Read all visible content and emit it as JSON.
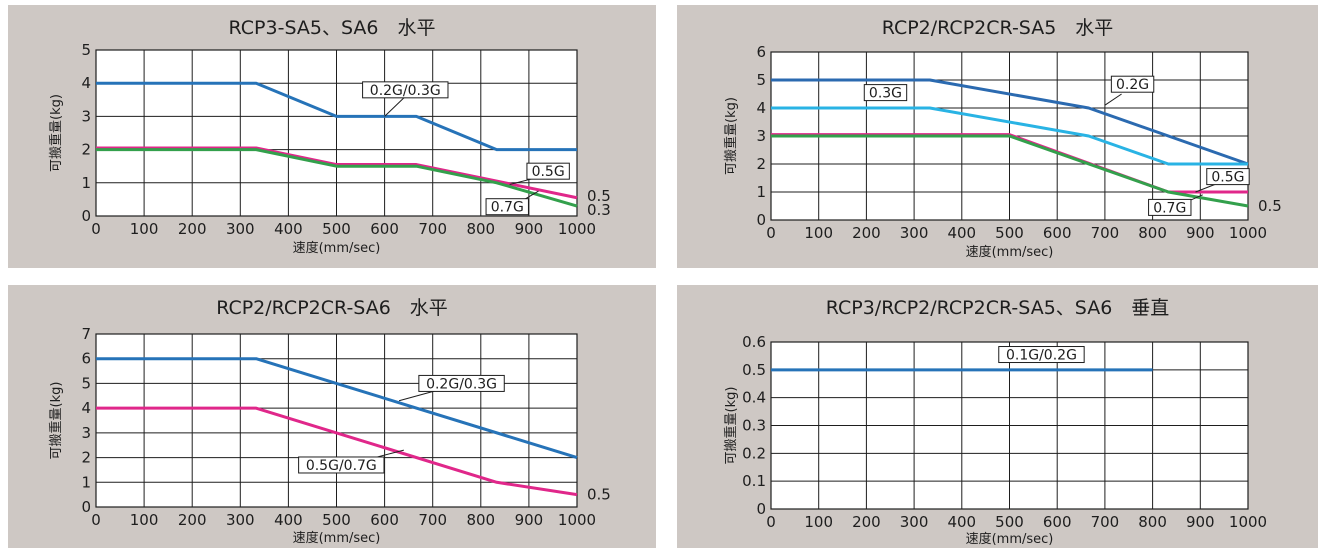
{
  "colors": {
    "panel_bg": "#cec8c4",
    "blue": "#2673b8",
    "dark_blue": "#2b6ab0",
    "cyan": "#29b3e4",
    "magenta": "#e0278a",
    "green": "#33a04c",
    "grid": "#1e1e1e"
  },
  "chart_data": [
    {
      "type": "line",
      "title": "RCP3-SA5、SA6　水平",
      "xlabel": "速度(mm/sec)",
      "ylabel": "可搬重量(kg)",
      "xlim": [
        0,
        1000
      ],
      "ylim": [
        0,
        5
      ],
      "x_ticks": [
        0,
        100,
        200,
        300,
        400,
        500,
        600,
        700,
        800,
        900,
        1000
      ],
      "y_ticks": [
        0,
        1,
        2,
        3,
        4,
        5
      ],
      "grid": true,
      "series": [
        {
          "color_key": "blue",
          "points": [
            [
              0,
              4
            ],
            [
              333,
              4
            ],
            [
              500,
              3
            ],
            [
              666,
              3
            ],
            [
              833,
              2
            ],
            [
              1000,
              2
            ]
          ]
        },
        {
          "color_key": "magenta",
          "points": [
            [
              0,
              2.05
            ],
            [
              333,
              2.05
            ],
            [
              500,
              1.55
            ],
            [
              666,
              1.55
            ],
            [
              833,
              1.05
            ],
            [
              1000,
              0.55
            ]
          ]
        },
        {
          "color_key": "green",
          "points": [
            [
              0,
              2
            ],
            [
              333,
              2
            ],
            [
              500,
              1.5
            ],
            [
              666,
              1.5
            ],
            [
              833,
              1
            ],
            [
              1000,
              0.3
            ]
          ]
        }
      ],
      "annotations": [
        {
          "text": "0.2G/0.3G",
          "box": [
            643,
            3.8
          ],
          "leader": [
            [
              643,
              3.6
            ],
            [
              600,
              3
            ]
          ]
        },
        {
          "text": "0.5G",
          "box": [
            940,
            1.35
          ],
          "leader": [
            [
              915,
              1.15
            ],
            [
              860,
              0.95
            ]
          ]
        },
        {
          "text": "0.7G",
          "box": [
            855,
            0.28
          ],
          "leader": [
            [
              885,
              0.45
            ],
            [
              920,
              0.75
            ]
          ]
        }
      ],
      "end_labels": [
        {
          "text": "0.5",
          "y": 0.6
        },
        {
          "text": "0.3",
          "y": 0.18
        }
      ]
    },
    {
      "type": "line",
      "title": "RCP2/RCP2CR-SA5　水平",
      "xlabel": "速度(mm/sec)",
      "ylabel": "可搬重量(kg)",
      "xlim": [
        0,
        1000
      ],
      "ylim": [
        0,
        6
      ],
      "x_ticks": [
        0,
        100,
        200,
        300,
        400,
        500,
        600,
        700,
        800,
        900,
        1000
      ],
      "y_ticks": [
        0,
        1,
        2,
        3,
        4,
        5,
        6
      ],
      "grid": true,
      "series": [
        {
          "color_key": "dark_blue",
          "points": [
            [
              0,
              5
            ],
            [
              333,
              5
            ],
            [
              666,
              4
            ],
            [
              1000,
              2
            ]
          ]
        },
        {
          "color_key": "cyan",
          "points": [
            [
              0,
              4
            ],
            [
              333,
              4
            ],
            [
              666,
              3
            ],
            [
              833,
              2
            ],
            [
              1000,
              2
            ]
          ]
        },
        {
          "color_key": "magenta",
          "points": [
            [
              0,
              3.05
            ],
            [
              500,
              3.05
            ],
            [
              833,
              1
            ],
            [
              1000,
              1
            ]
          ]
        },
        {
          "color_key": "green",
          "points": [
            [
              0,
              3
            ],
            [
              500,
              3
            ],
            [
              833,
              1
            ],
            [
              1000,
              0.5
            ]
          ]
        }
      ],
      "annotations": [
        {
          "text": "0.2G",
          "box": [
            758,
            4.85
          ],
          "leader": [
            [
              735,
              4.5
            ],
            [
              700,
              4.1
            ]
          ]
        },
        {
          "text": "0.3G",
          "box": [
            240,
            4.55
          ],
          "leader": null
        },
        {
          "text": "0.5G",
          "box": [
            958,
            1.55
          ],
          "leader": [
            [
              935,
              1.3
            ],
            [
              890,
              1.0
            ]
          ]
        },
        {
          "text": "0.7G",
          "box": [
            836,
            0.45
          ],
          "leader": [
            [
              865,
              0.6
            ],
            [
              905,
              0.9
            ]
          ]
        }
      ],
      "end_labels": [
        {
          "text": "0.5",
          "y": 0.5
        }
      ]
    },
    {
      "type": "line",
      "title": "RCP2/RCP2CR-SA6　水平",
      "xlabel": "速度(mm/sec)",
      "ylabel": "可搬重量(kg)",
      "xlim": [
        0,
        1000
      ],
      "ylim": [
        0,
        7
      ],
      "x_ticks": [
        0,
        100,
        200,
        300,
        400,
        500,
        600,
        700,
        800,
        900,
        1000
      ],
      "y_ticks": [
        0,
        1,
        2,
        3,
        4,
        5,
        6,
        7
      ],
      "grid": true,
      "series": [
        {
          "color_key": "blue",
          "points": [
            [
              0,
              6
            ],
            [
              333,
              6
            ],
            [
              1000,
              2
            ]
          ]
        },
        {
          "color_key": "magenta",
          "points": [
            [
              0,
              4
            ],
            [
              333,
              4
            ],
            [
              833,
              1
            ],
            [
              1000,
              0.5
            ]
          ]
        }
      ],
      "annotations": [
        {
          "text": "0.2G/0.3G",
          "box": [
            760,
            5.0
          ],
          "leader": [
            [
              705,
              4.7
            ],
            [
              630,
              4.3
            ]
          ]
        },
        {
          "text": "0.5G/0.7G",
          "box": [
            510,
            1.7
          ],
          "leader": [
            [
              580,
              2.0
            ],
            [
              640,
              2.3
            ]
          ]
        }
      ],
      "end_labels": [
        {
          "text": "0.5",
          "y": 0.5
        }
      ]
    },
    {
      "type": "line",
      "title": "RCP3/RCP2/RCP2CR-SA5、SA6　垂直",
      "xlabel": "速度(mm/sec)",
      "ylabel": "可搬重量(kg)",
      "xlim": [
        0,
        1000
      ],
      "ylim": [
        0,
        0.6
      ],
      "x_ticks": [
        0,
        100,
        200,
        300,
        400,
        500,
        600,
        700,
        800,
        900,
        1000
      ],
      "y_ticks": [
        0,
        0.1,
        0.2,
        0.3,
        0.4,
        0.5,
        0.6
      ],
      "grid": true,
      "series": [
        {
          "color_key": "blue",
          "points": [
            [
              0,
              0.5
            ],
            [
              800,
              0.5
            ]
          ]
        }
      ],
      "annotations": [
        {
          "text": "0.1G/0.2G",
          "box": [
            567,
            0.555
          ],
          "leader": null
        }
      ],
      "end_labels": []
    }
  ]
}
